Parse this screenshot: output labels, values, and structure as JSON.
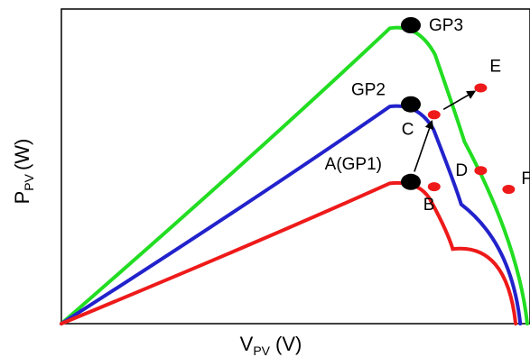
{
  "chart_data": {
    "type": "line",
    "title": "",
    "xlabel": "V",
    "xlabel_sub": "PV",
    "xlabel_unit": "(V)",
    "ylabel": "P",
    "ylabel_sub": "PV",
    "ylabel_unit": "(W)",
    "xlim": [
      0,
      1
    ],
    "ylim": [
      0,
      1
    ],
    "grid": false,
    "ticks": false,
    "series": [
      {
        "color": "#22dd22",
        "peak": [
          0.75,
          1.0
        ],
        "knee": [
          0.865,
          0.61
        ],
        "end": [
          1.0,
          0.0
        ]
      },
      {
        "color": "#2222cc",
        "peak": [
          0.75,
          0.735
        ],
        "knee": [
          0.858,
          0.4
        ],
        "end": [
          0.985,
          0.0
        ]
      },
      {
        "color": "#ee1a1a",
        "peak": [
          0.75,
          0.475
        ],
        "knee": [
          0.84,
          0.25
        ],
        "end": [
          0.975,
          0.0
        ]
      }
    ],
    "gp_points": [
      {
        "label": "GP3",
        "x": 0.75,
        "y": 1.0
      },
      {
        "label": "GP2",
        "x": 0.75,
        "y": 0.735
      },
      {
        "label": "A(GP1)",
        "x": 0.75,
        "y": 0.475
      }
    ],
    "op_points": [
      {
        "label": "B",
        "x": 0.8,
        "y": 0.459
      },
      {
        "label": "C",
        "x": 0.8,
        "y": 0.7
      },
      {
        "label": "D",
        "x": 0.9,
        "y": 0.513
      },
      {
        "label": "E",
        "x": 0.9,
        "y": 0.79
      },
      {
        "label": "F",
        "x": 0.96,
        "y": 0.45
      }
    ],
    "arrows": [
      {
        "from": [
          0.75,
          0.475
        ],
        "to": [
          0.8,
          0.7
        ]
      },
      {
        "from": [
          0.8,
          0.7
        ],
        "to": [
          0.9,
          0.79
        ]
      }
    ]
  }
}
